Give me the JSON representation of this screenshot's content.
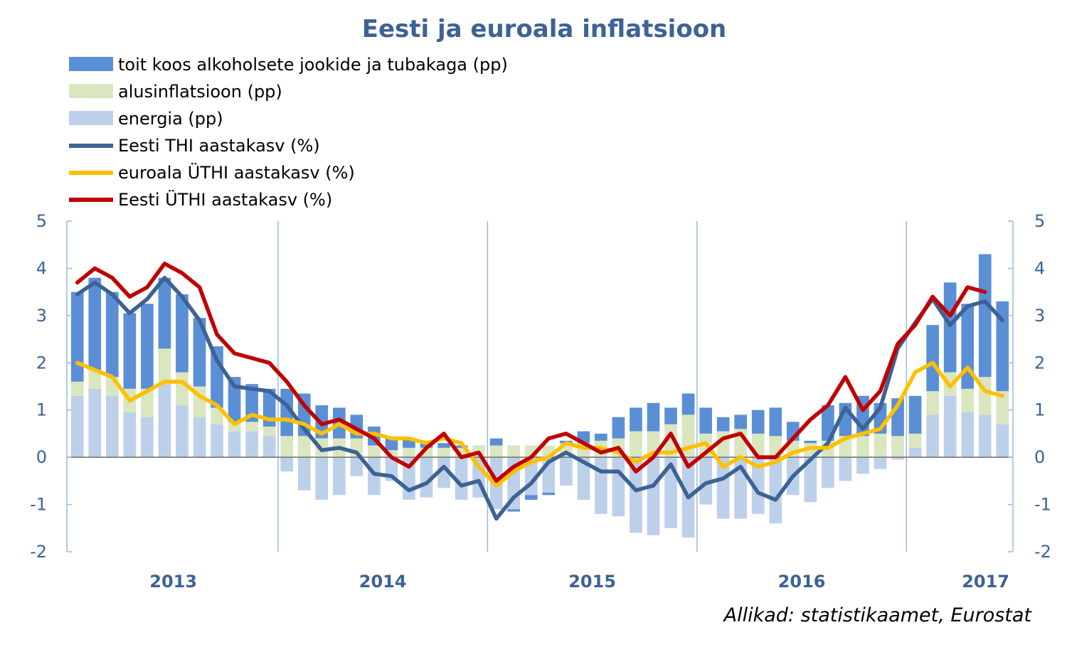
{
  "chart_data": {
    "type": "bar",
    "title": "Eesti ja euroala inflatsioon",
    "source": "Allikad: statistikaamet, Eurostat",
    "ylim": [
      -2,
      5
    ],
    "yticks": [
      "5",
      "4",
      "3",
      "2",
      "1",
      "0",
      "-1",
      "-2"
    ],
    "years": [
      "2013",
      "2014",
      "2015",
      "2016",
      "2017"
    ],
    "grid": false,
    "legend_placement": "top-left",
    "colors": {
      "food": "#5a8fd6",
      "core": "#d9e6bf",
      "energy": "#bdd0ea",
      "thi": "#3d6294",
      "euro_uthi": "#ffc000",
      "eesti_uthi": "#c00000",
      "axis": "#9fb8da",
      "text": "#3d6294"
    },
    "x_months": [
      "2013-01",
      "2013-02",
      "2013-03",
      "2013-04",
      "2013-05",
      "2013-06",
      "2013-07",
      "2013-08",
      "2013-09",
      "2013-10",
      "2013-11",
      "2013-12",
      "2014-01",
      "2014-02",
      "2014-03",
      "2014-04",
      "2014-05",
      "2014-06",
      "2014-07",
      "2014-08",
      "2014-09",
      "2014-10",
      "2014-11",
      "2014-12",
      "2015-01",
      "2015-02",
      "2015-03",
      "2015-04",
      "2015-05",
      "2015-06",
      "2015-07",
      "2015-08",
      "2015-09",
      "2015-10",
      "2015-11",
      "2015-12",
      "2016-01",
      "2016-02",
      "2016-03",
      "2016-04",
      "2016-05",
      "2016-06",
      "2016-07",
      "2016-08",
      "2016-09",
      "2016-10",
      "2016-11",
      "2016-12",
      "2017-01",
      "2017-02",
      "2017-03",
      "2017-04",
      "2017-05",
      "2017-06"
    ],
    "series": [
      {
        "name": "toit koos alkoholsete jookide ja tubakaga (pp)",
        "key": "food",
        "kind": "bar",
        "values": [
          1.9,
          1.95,
          1.8,
          1.6,
          1.8,
          1.5,
          1.65,
          1.45,
          1.3,
          0.95,
          0.8,
          0.8,
          1.0,
          0.9,
          0.7,
          0.65,
          0.5,
          0.4,
          0.25,
          0.2,
          0.15,
          0.1,
          0.05,
          0.0,
          0.15,
          -0.05,
          -0.1,
          -0.05,
          0.05,
          0.25,
          0.15,
          0.45,
          0.5,
          0.6,
          0.35,
          0.45,
          0.55,
          0.3,
          0.3,
          0.5,
          0.6,
          0.4,
          0.05,
          0.75,
          0.7,
          0.85,
          0.65,
          0.8,
          0.8,
          1.4,
          1.9,
          1.8,
          2.6,
          1.9
        ]
      },
      {
        "name": "alusinflatsioon (pp)",
        "key": "core",
        "kind": "bar",
        "values": [
          0.3,
          0.4,
          0.4,
          0.5,
          0.6,
          0.75,
          0.7,
          0.65,
          0.35,
          0.2,
          0.2,
          0.2,
          0.45,
          0.45,
          0.4,
          0.4,
          0.4,
          0.25,
          0.15,
          0.2,
          0.2,
          0.2,
          0.2,
          0.25,
          0.25,
          0.25,
          0.25,
          0.25,
          0.3,
          0.3,
          0.35,
          0.4,
          0.55,
          0.55,
          0.7,
          0.9,
          0.5,
          0.55,
          0.6,
          0.5,
          0.45,
          0.35,
          0.3,
          0.35,
          0.45,
          0.45,
          0.5,
          0.45,
          0.3,
          0.5,
          0.5,
          0.5,
          0.8,
          0.7
        ]
      },
      {
        "name": "energia (pp)",
        "key": "energy",
        "kind": "bar",
        "values": [
          1.3,
          1.45,
          1.3,
          0.95,
          0.85,
          1.55,
          1.1,
          0.85,
          0.7,
          0.55,
          0.55,
          0.45,
          -0.3,
          -0.7,
          -0.9,
          -0.8,
          -0.4,
          -0.8,
          -0.5,
          -0.9,
          -0.85,
          -0.65,
          -0.9,
          -0.85,
          -1.1,
          -1.1,
          -0.8,
          -0.75,
          -0.6,
          -0.9,
          -1.2,
          -1.25,
          -1.6,
          -1.65,
          -1.5,
          -1.7,
          -1.0,
          -1.3,
          -1.3,
          -1.2,
          -1.4,
          -0.8,
          -0.95,
          -0.65,
          -0.5,
          -0.35,
          -0.25,
          -0.05,
          0.2,
          0.9,
          1.3,
          0.95,
          0.9,
          0.7
        ]
      },
      {
        "name": "Eesti THI aastakasv (%)",
        "key": "thi",
        "kind": "line",
        "values": [
          3.45,
          3.7,
          3.45,
          3.05,
          3.35,
          3.8,
          3.4,
          2.9,
          2.05,
          1.5,
          1.45,
          1.4,
          1.1,
          0.6,
          0.15,
          0.2,
          0.1,
          -0.35,
          -0.4,
          -0.7,
          -0.55,
          -0.2,
          -0.6,
          -0.5,
          -1.3,
          -0.85,
          -0.55,
          -0.1,
          0.1,
          -0.1,
          -0.3,
          -0.3,
          -0.7,
          -0.6,
          -0.15,
          -0.85,
          -0.55,
          -0.45,
          -0.2,
          -0.75,
          -0.9,
          -0.4,
          -0.05,
          0.3,
          1.05,
          0.6,
          1.05,
          2.3,
          2.85,
          3.35,
          2.8,
          3.2,
          3.3,
          2.9
        ]
      },
      {
        "name": "euroala ÜTHI aastakasv (%)",
        "key": "euro_uthi",
        "kind": "line",
        "values": [
          2.0,
          1.85,
          1.7,
          1.2,
          1.4,
          1.6,
          1.6,
          1.3,
          1.1,
          0.7,
          0.9,
          0.8,
          0.8,
          0.7,
          0.5,
          0.7,
          0.5,
          0.5,
          0.4,
          0.4,
          0.3,
          0.4,
          0.3,
          -0.2,
          -0.6,
          -0.3,
          -0.1,
          0.0,
          0.3,
          0.2,
          0.2,
          0.1,
          -0.1,
          0.1,
          0.1,
          0.2,
          0.3,
          -0.2,
          0.0,
          -0.2,
          -0.1,
          0.1,
          0.2,
          0.2,
          0.4,
          0.5,
          0.6,
          1.1,
          1.8,
          2.0,
          1.5,
          1.9,
          1.4,
          1.3
        ]
      },
      {
        "name": "Eesti ÜTHI aastakasv (%)",
        "key": "eesti_uthi",
        "kind": "line",
        "values": [
          3.7,
          4.0,
          3.8,
          3.4,
          3.6,
          4.1,
          3.9,
          3.6,
          2.6,
          2.2,
          2.1,
          2.0,
          1.6,
          1.1,
          0.7,
          0.8,
          0.6,
          0.4,
          0.0,
          -0.2,
          0.2,
          0.5,
          0.0,
          0.1,
          -0.5,
          -0.2,
          0.0,
          0.4,
          0.5,
          0.3,
          0.1,
          0.2,
          -0.3,
          0.0,
          0.5,
          -0.2,
          0.1,
          0.4,
          0.5,
          0.0,
          0.0,
          0.4,
          0.8,
          1.1,
          1.7,
          1.0,
          1.4,
          2.4,
          2.8,
          3.4,
          3.0,
          3.6,
          3.5,
          null
        ]
      }
    ]
  }
}
